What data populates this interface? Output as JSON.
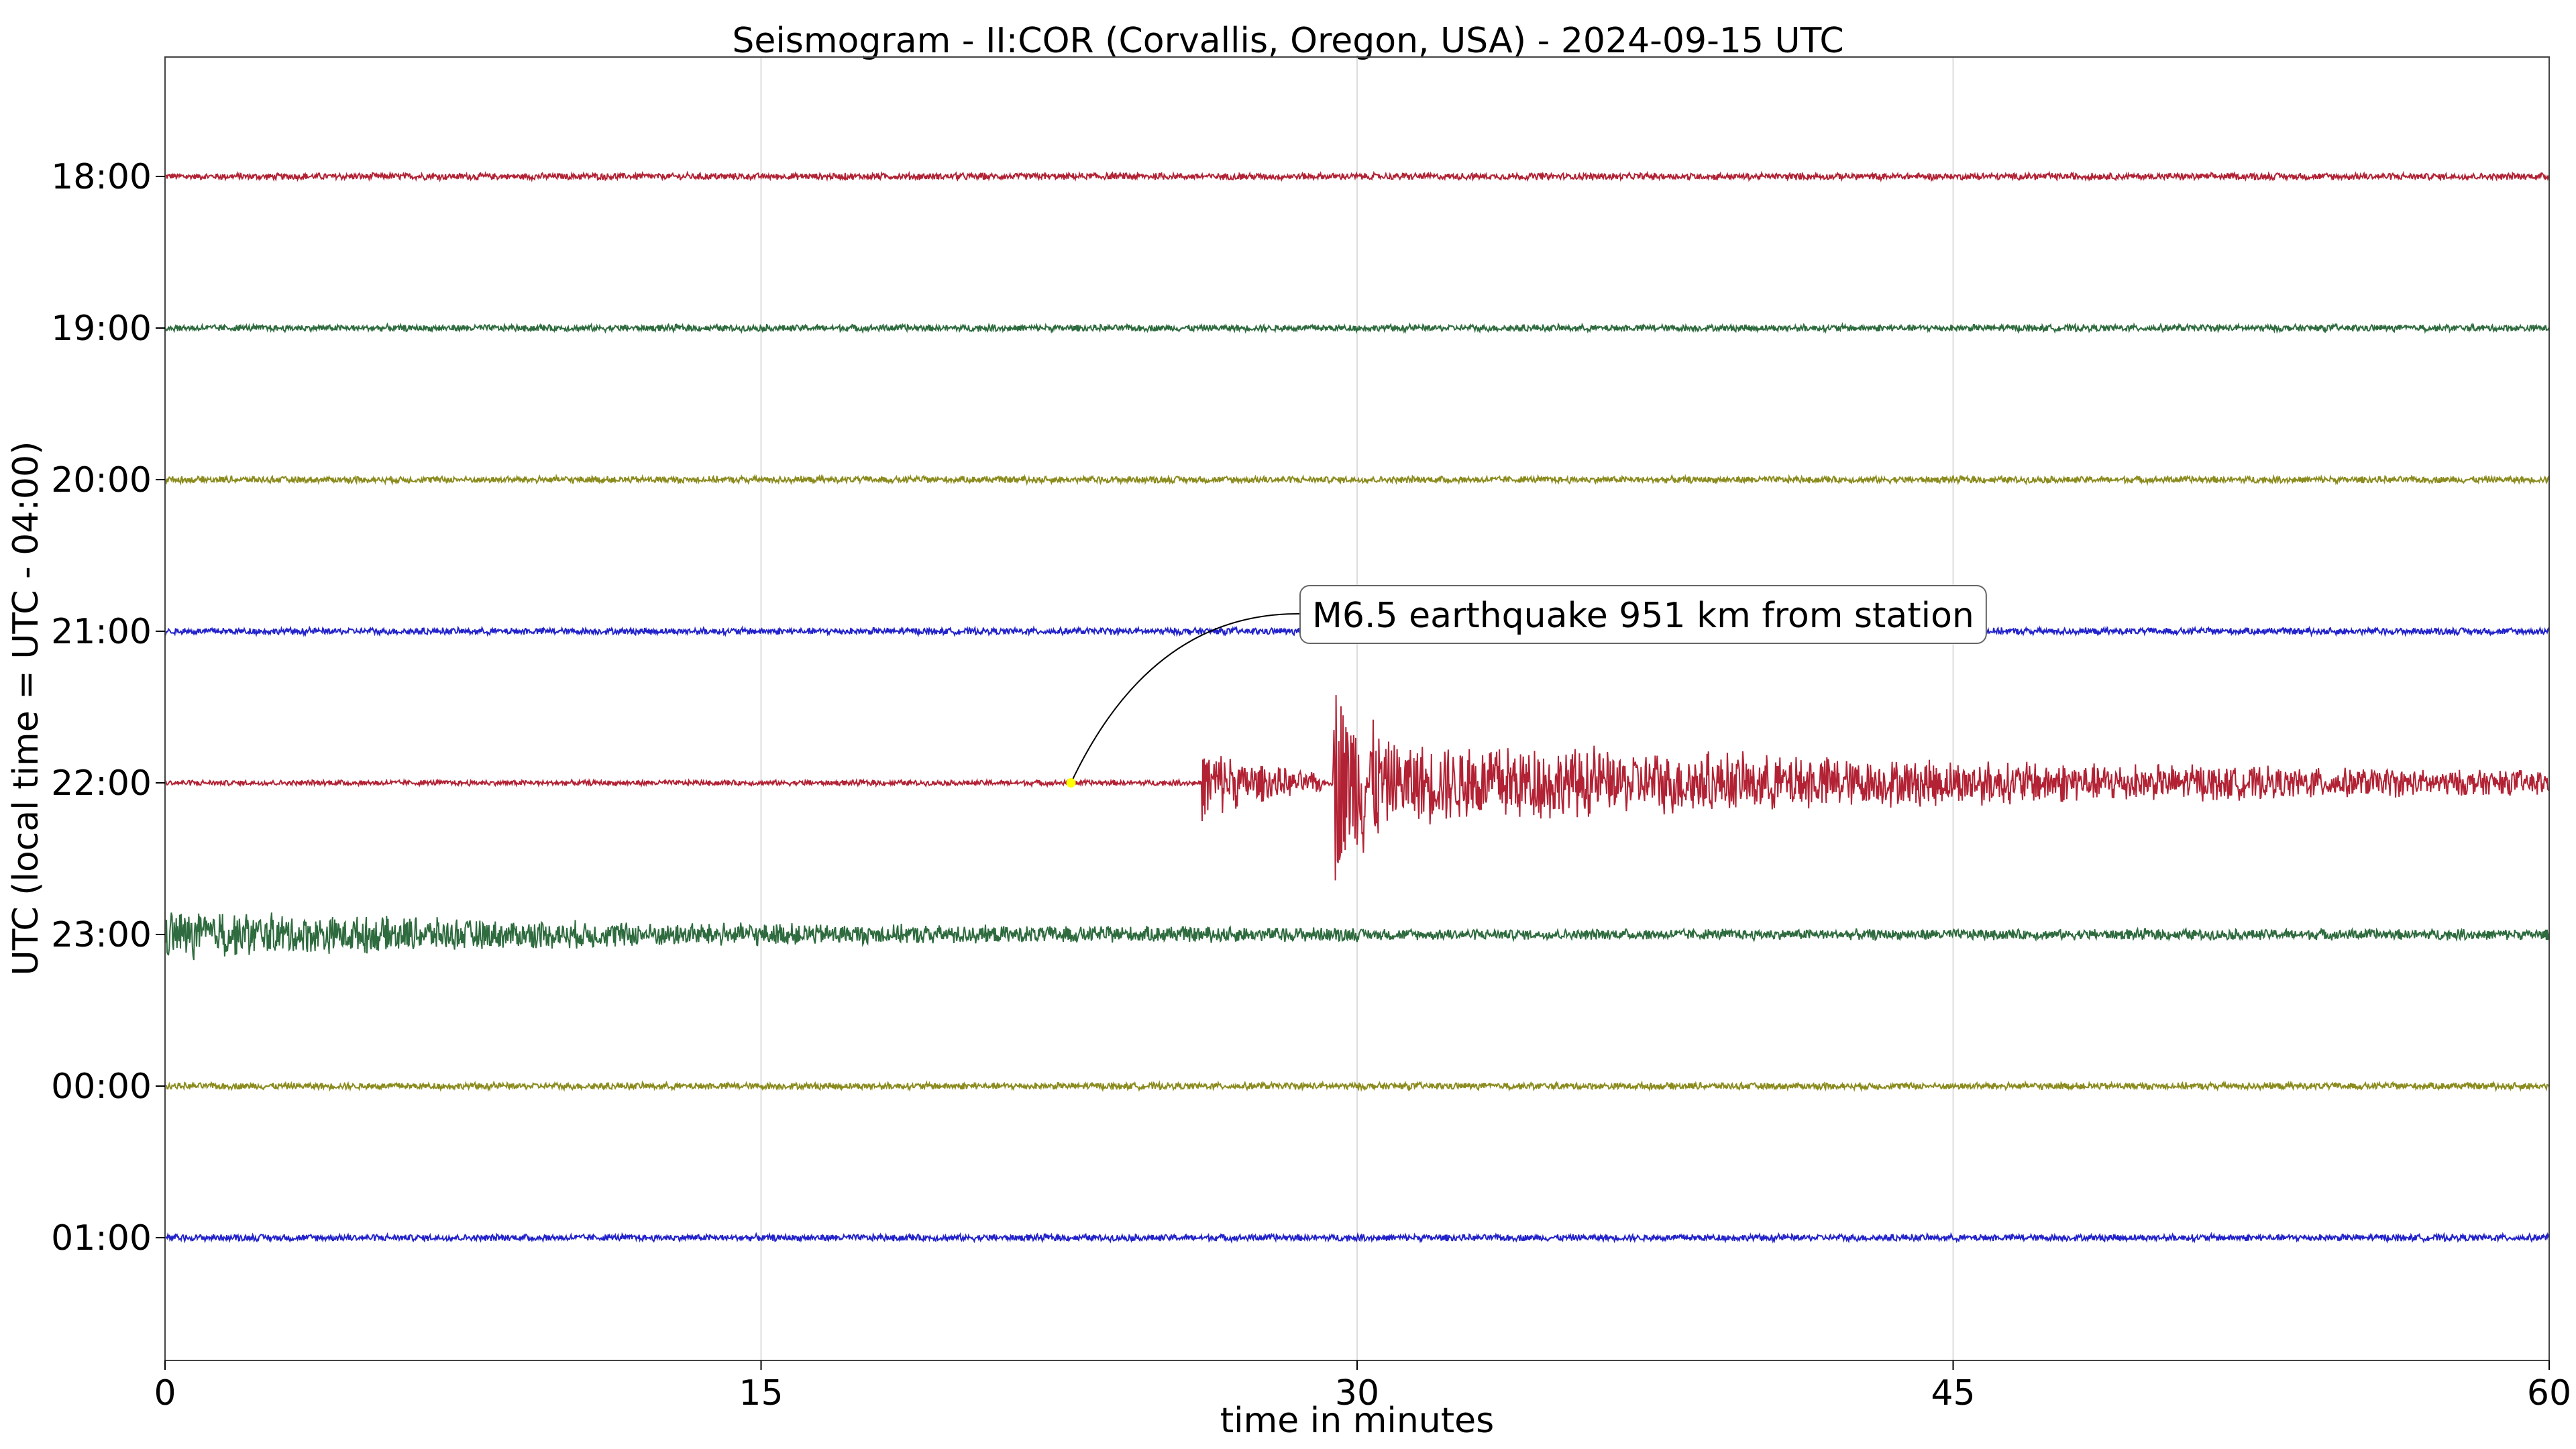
{
  "chart_data": {
    "type": "line",
    "title": "Seismogram - II:COR (Corvallis, Oregon, USA) - 2024-09-15 UTC",
    "xlabel": "time in minutes",
    "ylabel": "UTC (local time = UTC - 04:00)",
    "xlim": [
      0,
      60
    ],
    "x_ticks": [
      0,
      15,
      30,
      45,
      60
    ],
    "grid": "vertical lines at x ticks",
    "series": [
      {
        "row": "18:00",
        "color": "#b22234",
        "noise": 0.05,
        "events": []
      },
      {
        "row": "19:00",
        "color": "#2e6b3e",
        "noise": 0.05,
        "events": []
      },
      {
        "row": "20:00",
        "color": "#8b8b1e",
        "noise": 0.05,
        "events": []
      },
      {
        "row": "21:00",
        "color": "#2323cc",
        "noise": 0.05,
        "events": []
      },
      {
        "row": "22:00",
        "color": "#b22234",
        "noise": 0.04,
        "events": [
          {
            "start": 26.1,
            "end": 29.1,
            "amp": 0.55,
            "decay": 0.55
          },
          {
            "start": 29.4,
            "end": 30.6,
            "amp": 1.55,
            "decay": 0.5
          },
          {
            "start": 30.6,
            "end": 60,
            "amp": 0.6,
            "decay": 0.05
          }
        ]
      },
      {
        "row": "23:00",
        "color": "#2e6b3e",
        "noise": 0.08,
        "events": [
          {
            "start": 0,
            "end": 30,
            "amp": 0.28,
            "decay": 0.08
          }
        ]
      },
      {
        "row": "00:00",
        "color": "#8b8b1e",
        "noise": 0.05,
        "events": []
      },
      {
        "row": "01:00",
        "color": "#2323cc",
        "noise": 0.05,
        "events": []
      }
    ],
    "annotation": {
      "text": "M6.5 earthquake 951 km from station",
      "row": "22:00",
      "x": 22.8,
      "marker_color": "#ffff00"
    }
  }
}
